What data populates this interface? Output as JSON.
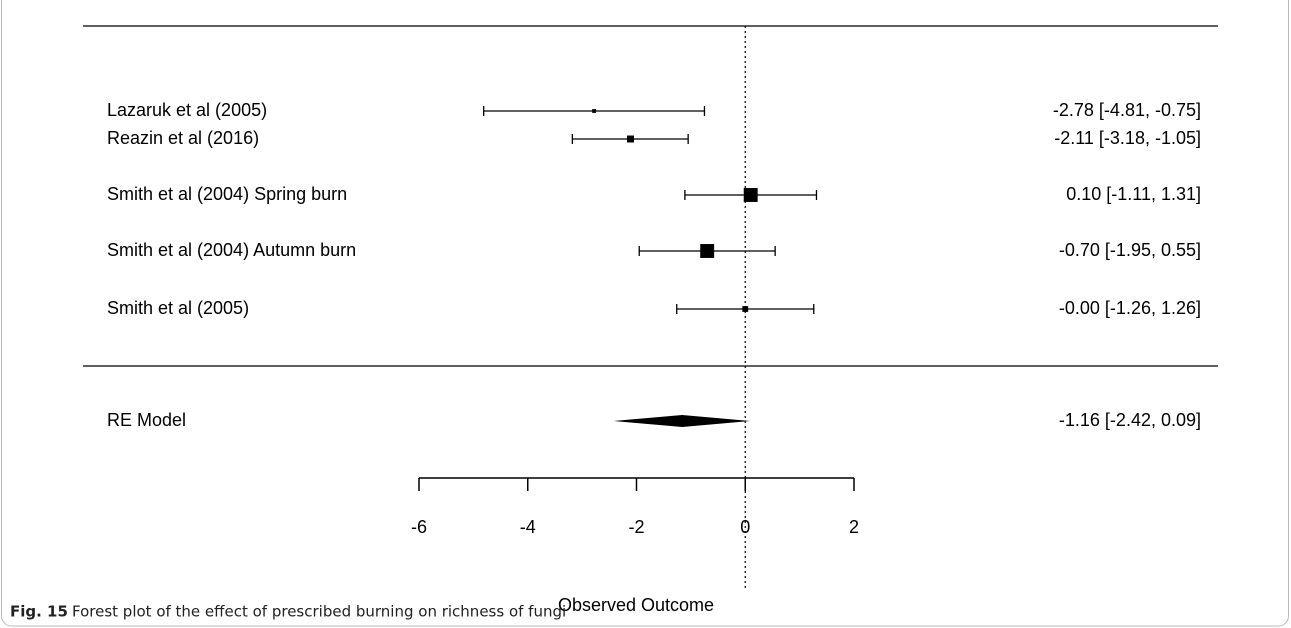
{
  "chart_data": {
    "type": "forest",
    "xlabel": "Observed Outcome",
    "categories": [
      "Lazaruk et al (2005)",
      "Reazin et al (2016)",
      "Smith et al (2004) Spring burn",
      "Smith et al (2004) Autumn burn",
      "Smith et al (2005)"
    ],
    "estimates": [
      -2.78,
      -2.11,
      0.1,
      -0.7,
      -0.0
    ],
    "ci_lower": [
      -4.81,
      -3.18,
      -1.11,
      -1.95,
      -1.26
    ],
    "ci_upper": [
      -0.75,
      -1.05,
      1.31,
      0.55,
      1.26
    ],
    "weights": [
      3,
      10,
      40,
      40,
      7
    ],
    "value_labels": [
      "-2.78 [-4.81, -0.75]",
      "-2.11 [-3.18, -1.05]",
      "0.10 [-1.11,  1.31]",
      "-0.70 [-1.95,  0.55]",
      "-0.00 [-1.26,  1.26]"
    ],
    "summary": {
      "label": "RE Model",
      "estimate": -1.16,
      "ci_lower": -2.42,
      "ci_upper": 0.09,
      "value_label": "-1.16 [-2.42,  0.09]"
    },
    "reference_line": 0,
    "xlim": [
      -6,
      2
    ],
    "xticks": [
      -6,
      -4,
      -2,
      0,
      2
    ],
    "color": "#000000"
  },
  "caption": {
    "label": "Fig. 15",
    "text": "Forest plot of the effect of prescribed burning on richness of fungi"
  }
}
